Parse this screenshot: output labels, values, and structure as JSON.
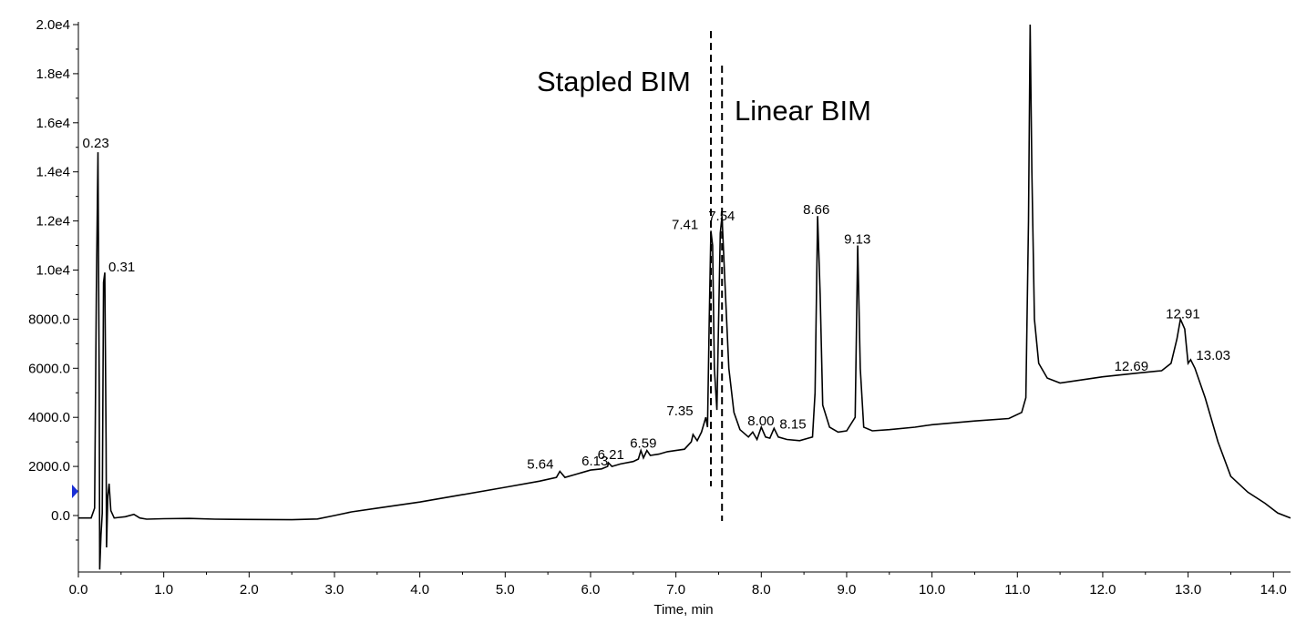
{
  "chart_data": {
    "type": "line",
    "xlabel": "Time, min",
    "ylabel": "",
    "xlim": [
      0.0,
      14.2
    ],
    "ylim": [
      -2200,
      20000
    ],
    "grid": false,
    "x_ticks": [
      {
        "value": 0.0,
        "label": "0.0"
      },
      {
        "value": 1.0,
        "label": "1.0"
      },
      {
        "value": 2.0,
        "label": "2.0"
      },
      {
        "value": 3.0,
        "label": "3.0"
      },
      {
        "value": 4.0,
        "label": "4.0"
      },
      {
        "value": 5.0,
        "label": "5.0"
      },
      {
        "value": 6.0,
        "label": "6.0"
      },
      {
        "value": 7.0,
        "label": "7.0"
      },
      {
        "value": 8.0,
        "label": "8.0"
      },
      {
        "value": 9.0,
        "label": "9.0"
      },
      {
        "value": 10.0,
        "label": "10.0"
      },
      {
        "value": 11.0,
        "label": "11.0"
      },
      {
        "value": 12.0,
        "label": "12.0"
      },
      {
        "value": 13.0,
        "label": "13.0"
      },
      {
        "value": 14.0,
        "label": "14.0"
      }
    ],
    "y_ticks": [
      {
        "value": 0,
        "label": "0.0"
      },
      {
        "value": 2000,
        "label": "2000.0"
      },
      {
        "value": 4000,
        "label": "4000.0"
      },
      {
        "value": 6000,
        "label": "6000.0"
      },
      {
        "value": 8000,
        "label": "8000.0"
      },
      {
        "value": 10000,
        "label": "1.0e4"
      },
      {
        "value": 12000,
        "label": "1.2e4"
      },
      {
        "value": 14000,
        "label": "1.4e4"
      },
      {
        "value": 16000,
        "label": "1.6e4"
      },
      {
        "value": 18000,
        "label": "1.8e4"
      },
      {
        "value": 20000,
        "label": "2.0e4"
      }
    ],
    "series": [
      {
        "points": [
          [
            0.0,
            -100
          ],
          [
            0.15,
            -100
          ],
          [
            0.19,
            300
          ],
          [
            0.21,
            9000
          ],
          [
            0.23,
            14800
          ],
          [
            0.245,
            5000
          ],
          [
            0.25,
            -2200
          ],
          [
            0.265,
            -800
          ],
          [
            0.28,
            100
          ],
          [
            0.295,
            9500
          ],
          [
            0.31,
            9900
          ],
          [
            0.325,
            3000
          ],
          [
            0.33,
            -1300
          ],
          [
            0.345,
            800
          ],
          [
            0.36,
            1300
          ],
          [
            0.38,
            200
          ],
          [
            0.42,
            -100
          ],
          [
            0.55,
            -50
          ],
          [
            0.65,
            50
          ],
          [
            0.72,
            -100
          ],
          [
            0.8,
            -150
          ],
          [
            1.0,
            -130
          ],
          [
            1.3,
            -120
          ],
          [
            1.6,
            -150
          ],
          [
            2.0,
            -160
          ],
          [
            2.5,
            -170
          ],
          [
            2.8,
            -140
          ],
          [
            3.0,
            0
          ],
          [
            3.2,
            150
          ],
          [
            3.5,
            300
          ],
          [
            4.0,
            550
          ],
          [
            4.5,
            850
          ],
          [
            5.0,
            1150
          ],
          [
            5.4,
            1400
          ],
          [
            5.6,
            1550
          ],
          [
            5.64,
            1800
          ],
          [
            5.7,
            1550
          ],
          [
            5.8,
            1650
          ],
          [
            5.9,
            1750
          ],
          [
            6.0,
            1850
          ],
          [
            6.13,
            1900
          ],
          [
            6.2,
            2000
          ],
          [
            6.21,
            2150
          ],
          [
            6.25,
            2000
          ],
          [
            6.35,
            2100
          ],
          [
            6.5,
            2200
          ],
          [
            6.56,
            2300
          ],
          [
            6.59,
            2650
          ],
          [
            6.62,
            2350
          ],
          [
            6.66,
            2650
          ],
          [
            6.7,
            2450
          ],
          [
            6.8,
            2500
          ],
          [
            6.9,
            2600
          ],
          [
            7.0,
            2650
          ],
          [
            7.1,
            2700
          ],
          [
            7.18,
            3000
          ],
          [
            7.2,
            3300
          ],
          [
            7.25,
            3050
          ],
          [
            7.3,
            3400
          ],
          [
            7.35,
            4000
          ],
          [
            7.37,
            3600
          ],
          [
            7.39,
            8000
          ],
          [
            7.41,
            11600
          ],
          [
            7.43,
            11000
          ],
          [
            7.45,
            6000
          ],
          [
            7.48,
            4300
          ],
          [
            7.5,
            8000
          ],
          [
            7.52,
            11500
          ],
          [
            7.54,
            12200
          ],
          [
            7.58,
            9000
          ],
          [
            7.62,
            6000
          ],
          [
            7.68,
            4200
          ],
          [
            7.75,
            3500
          ],
          [
            7.85,
            3200
          ],
          [
            7.9,
            3400
          ],
          [
            7.95,
            3100
          ],
          [
            8.0,
            3600
          ],
          [
            8.05,
            3200
          ],
          [
            8.1,
            3150
          ],
          [
            8.15,
            3550
          ],
          [
            8.2,
            3200
          ],
          [
            8.3,
            3100
          ],
          [
            8.45,
            3050
          ],
          [
            8.6,
            3200
          ],
          [
            8.63,
            5000
          ],
          [
            8.66,
            12200
          ],
          [
            8.69,
            9000
          ],
          [
            8.72,
            4500
          ],
          [
            8.8,
            3600
          ],
          [
            8.9,
            3400
          ],
          [
            9.0,
            3450
          ],
          [
            9.1,
            4000
          ],
          [
            9.13,
            11000
          ],
          [
            9.16,
            6000
          ],
          [
            9.2,
            3600
          ],
          [
            9.3,
            3450
          ],
          [
            9.5,
            3500
          ],
          [
            9.8,
            3600
          ],
          [
            10.0,
            3700
          ],
          [
            10.5,
            3850
          ],
          [
            10.9,
            3950
          ],
          [
            11.05,
            4200
          ],
          [
            11.1,
            4800
          ],
          [
            11.13,
            12000
          ],
          [
            11.15,
            20000
          ],
          [
            11.17,
            14000
          ],
          [
            11.2,
            8000
          ],
          [
            11.25,
            6200
          ],
          [
            11.35,
            5600
          ],
          [
            11.5,
            5400
          ],
          [
            11.7,
            5500
          ],
          [
            12.0,
            5650
          ],
          [
            12.4,
            5800
          ],
          [
            12.69,
            5900
          ],
          [
            12.8,
            6200
          ],
          [
            12.87,
            7200
          ],
          [
            12.91,
            8000
          ],
          [
            12.96,
            7600
          ],
          [
            13.0,
            6200
          ],
          [
            13.03,
            6350
          ],
          [
            13.08,
            6000
          ],
          [
            13.2,
            4800
          ],
          [
            13.35,
            3000
          ],
          [
            13.5,
            1600
          ],
          [
            13.7,
            950
          ],
          [
            13.9,
            500
          ],
          [
            14.05,
            100
          ],
          [
            14.2,
            -100
          ]
        ]
      }
    ],
    "peak_labels": [
      {
        "x": 0.23,
        "y": 14800,
        "label": "0.23"
      },
      {
        "x": 0.31,
        "y": 9900,
        "label": "0.31"
      },
      {
        "x": 5.64,
        "y": 1800,
        "label": "5.64"
      },
      {
        "x": 6.13,
        "y": 1900,
        "label": "6.13"
      },
      {
        "x": 6.21,
        "y": 2150,
        "label": "6.21"
      },
      {
        "x": 6.59,
        "y": 2650,
        "label": "6.59"
      },
      {
        "x": 7.35,
        "y": 4000,
        "label": "7.35"
      },
      {
        "x": 7.41,
        "y": 11600,
        "label": "7.41"
      },
      {
        "x": 7.54,
        "y": 12200,
        "label": "7.54"
      },
      {
        "x": 8.0,
        "y": 3600,
        "label": "8.00"
      },
      {
        "x": 8.15,
        "y": 3550,
        "label": "8.15"
      },
      {
        "x": 8.66,
        "y": 12200,
        "label": "8.66"
      },
      {
        "x": 9.13,
        "y": 11000,
        "label": "9.13"
      },
      {
        "x": 12.69,
        "y": 5900,
        "label": "12.69"
      },
      {
        "x": 12.91,
        "y": 8000,
        "label": "12.91"
      },
      {
        "x": 13.03,
        "y": 6350,
        "label": "13.03"
      }
    ],
    "annotations": [
      {
        "text": "Stapled BIM",
        "x": 7.41,
        "style": "dashed-line"
      },
      {
        "text": "Linear BIM",
        "x": 7.54,
        "style": "dashed-line"
      }
    ],
    "colors": {
      "trace": "#000000",
      "marker": "#1a2fd6"
    }
  }
}
